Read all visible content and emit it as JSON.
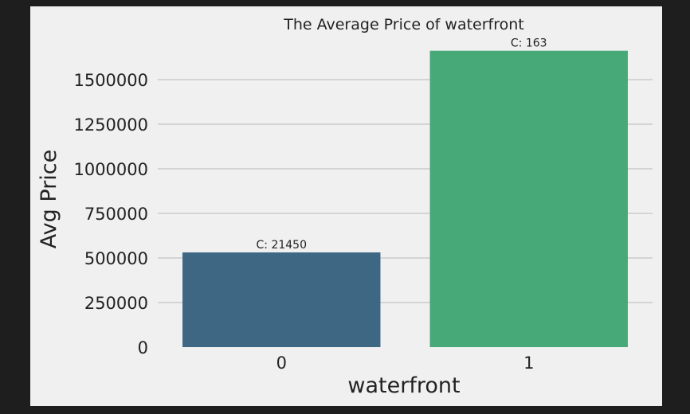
{
  "chart_data": {
    "type": "bar",
    "title": "The Average Price of waterfront",
    "xlabel": "waterfront",
    "ylabel": "Avg Price",
    "categories": [
      "0",
      "1"
    ],
    "values": [
      531000,
      1662000
    ],
    "annotations": [
      "C: 21450",
      "C: 163"
    ],
    "colors": [
      "#3e6783",
      "#47a878"
    ],
    "yticks": [
      0,
      250000,
      500000,
      750000,
      1000000,
      1250000,
      1500000
    ],
    "ylim": [
      0,
      1700000
    ],
    "grid": "horizontal",
    "legend": "none"
  }
}
